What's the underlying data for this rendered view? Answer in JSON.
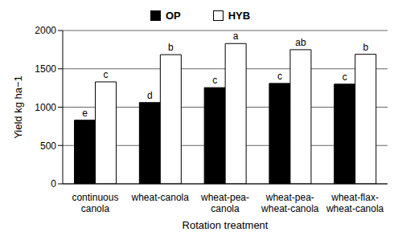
{
  "chart_data": {
    "type": "bar",
    "x_label": "Rotation treatment",
    "y_label": "Yield kg ha−1",
    "categories": [
      "continuous canola",
      "wheat-canola",
      "wheat-pea-canola",
      "wheat-pea-wheat-canola",
      "wheat-flax-wheat-canola"
    ],
    "series": [
      {
        "name": "OP",
        "color": "#000000",
        "values": [
          830,
          1060,
          1255,
          1310,
          1300
        ],
        "annotations": [
          "e",
          "d",
          "c",
          "c",
          "c"
        ]
      },
      {
        "name": "HYB",
        "color": "#ffffff",
        "values": [
          1330,
          1685,
          1830,
          1750,
          1690
        ],
        "annotations": [
          "c",
          "b",
          "a",
          "ab",
          "b"
        ]
      }
    ],
    "ylim": [
      0,
      2000
    ],
    "yticks": [
      0,
      500,
      1000,
      1500,
      2000
    ],
    "grid": true,
    "legend": "top"
  }
}
